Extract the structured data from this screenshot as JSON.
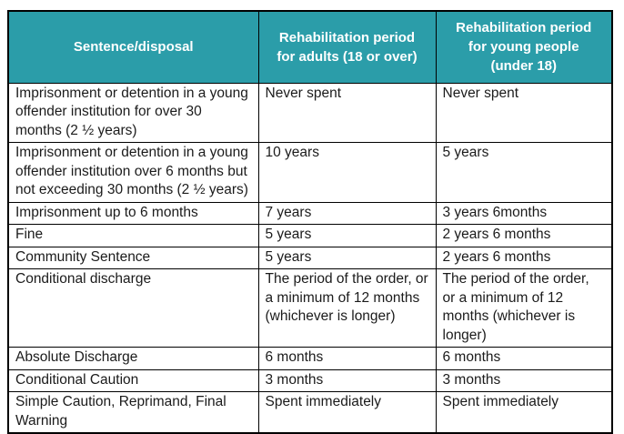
{
  "page": {
    "background_color": "#ffffff"
  },
  "table": {
    "accent_color": "#2b9da9",
    "border_color": "#000000",
    "header": {
      "col1": "Sentence/disposal",
      "col2": "Rehabilitation period for adults (18 or over)",
      "col3": "Rehabilitation period for young people (under 18)"
    },
    "rows": [
      {
        "sentence": "Imprisonment or detention in a young offender institution for over 30 months (2 ½ years)",
        "adult": "Never spent",
        "young": "Never spent"
      },
      {
        "sentence": "Imprisonment or detention in a young offender institution over 6 months but not exceeding 30 months (2 ½ years)",
        "adult": "10 years",
        "young": "5 years"
      },
      {
        "sentence": "Imprisonment up to 6 months",
        "adult": "7 years",
        "young": "3 years 6months"
      },
      {
        "sentence": "Fine",
        "adult": "5 years",
        "young": "2 years 6 months"
      },
      {
        "sentence": "Community Sentence",
        "adult": "5 years",
        "young": "2 years 6 months"
      },
      {
        "sentence": "Conditional discharge",
        "adult": "The period of the order, or a minimum of 12 months (whichever is longer)",
        "young": "The period of the order, or a minimum of 12 months (whichever is longer)"
      },
      {
        "sentence": "Absolute Discharge",
        "adult": "6 months",
        "young": "6 months"
      },
      {
        "sentence": "Conditional Caution",
        "adult": "3 months",
        "young": "3 months"
      },
      {
        "sentence": "Simple Caution, Reprimand, Final Warning",
        "adult": "Spent immediately",
        "young": "Spent immediately"
      }
    ]
  }
}
